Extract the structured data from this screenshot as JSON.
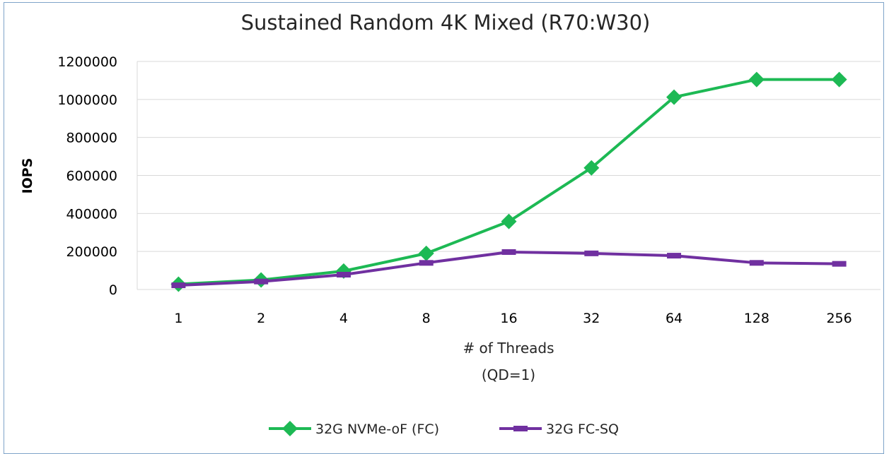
{
  "chart_data": {
    "type": "line",
    "title": "Sustained Random 4K Mixed (R70:W30)",
    "xlabel": "# of Threads",
    "xlabel_sub": "(QD=1)",
    "ylabel": "IOPS",
    "categories": [
      "1",
      "2",
      "4",
      "8",
      "16",
      "32",
      "64",
      "128",
      "256"
    ],
    "ylim": [
      0,
      1200000
    ],
    "yticks": [
      0,
      200000,
      400000,
      600000,
      800000,
      1000000,
      1200000
    ],
    "grid": true,
    "legend_position": "bottom",
    "series": [
      {
        "name": "32G NVMe-oF (FC)",
        "color": "#1db954",
        "marker": "diamond",
        "values": [
          28000,
          50000,
          97000,
          190000,
          358000,
          640000,
          1012000,
          1105000,
          1105000
        ]
      },
      {
        "name": "32G FC-SQ",
        "color": "#7030a0",
        "marker": "dash",
        "values": [
          22000,
          42000,
          78000,
          140000,
          197000,
          190000,
          178000,
          140000,
          135000
        ]
      }
    ]
  }
}
